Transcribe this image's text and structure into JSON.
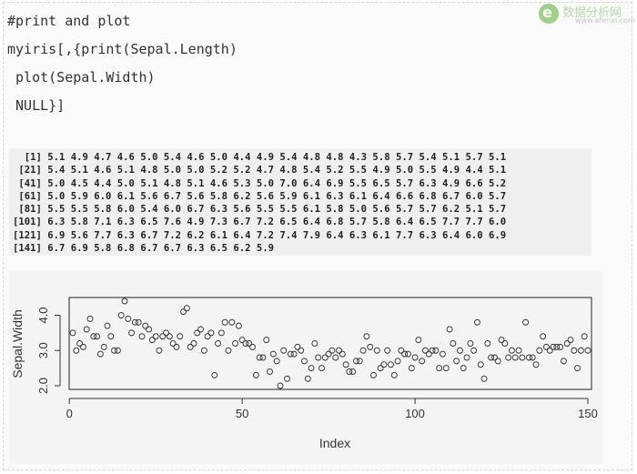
{
  "watermark": {
    "logo_letter": "e",
    "title": "数据分析网",
    "url": "www.afenxi.com"
  },
  "code": {
    "lines": [
      "#print and plot",
      "myiris[,{print(Sepal.Length)",
      " plot(Sepal.Width)",
      " NULL}]"
    ]
  },
  "console_output": {
    "lines": [
      "  [1] 5.1 4.9 4.7 4.6 5.0 5.4 4.6 5.0 4.4 4.9 5.4 4.8 4.8 4.3 5.8 5.7 5.4 5.1 5.7 5.1",
      " [21] 5.4 5.1 4.6 5.1 4.8 5.0 5.0 5.2 5.2 4.7 4.8 5.4 5.2 5.5 4.9 5.0 5.5 4.9 4.4 5.1",
      " [41] 5.0 4.5 4.4 5.0 5.1 4.8 5.1 4.6 5.3 5.0 7.0 6.4 6.9 5.5 6.5 5.7 6.3 4.9 6.6 5.2",
      " [61] 5.0 5.9 6.0 6.1 5.6 6.7 5.6 5.8 6.2 5.6 5.9 6.1 6.3 6.1 6.4 6.6 6.8 6.7 6.0 5.7",
      " [81] 5.5 5.5 5.8 6.0 5.4 6.0 6.7 6.3 5.6 5.5 5.5 6.1 5.8 5.0 5.6 5.7 5.7 6.2 5.1 5.7",
      "[101] 6.3 5.8 7.1 6.3 6.5 7.6 4.9 7.3 6.7 7.2 6.5 6.4 6.8 5.7 5.8 6.4 6.5 7.7 7.7 6.0",
      "[121] 6.9 5.6 7.7 6.3 6.7 7.2 6.2 6.1 6.4 7.2 7.4 7.9 6.4 6.3 6.1 7.7 6.3 6.4 6.0 6.9",
      "[141] 6.7 6.9 5.8 6.8 6.7 6.7 6.3 6.5 6.2 5.9"
    ]
  },
  "chart_data": {
    "type": "scatter",
    "xlabel": "Index",
    "ylabel": "Sepal.Width",
    "xlim": [
      1,
      150
    ],
    "ylim": [
      2.0,
      4.4
    ],
    "xticks": [
      0,
      50,
      100,
      150
    ],
    "yticks": [
      2.0,
      3.0,
      4.0
    ],
    "grid": false,
    "point_color": "#333333",
    "y": [
      3.5,
      3.0,
      3.2,
      3.1,
      3.6,
      3.9,
      3.4,
      3.4,
      2.9,
      3.1,
      3.7,
      3.4,
      3.0,
      3.0,
      4.0,
      4.4,
      3.9,
      3.5,
      3.8,
      3.8,
      3.4,
      3.7,
      3.6,
      3.3,
      3.4,
      3.0,
      3.4,
      3.5,
      3.4,
      3.2,
      3.1,
      3.4,
      4.1,
      4.2,
      3.1,
      3.2,
      3.5,
      3.6,
      3.0,
      3.4,
      3.5,
      2.3,
      3.2,
      3.5,
      3.8,
      3.0,
      3.8,
      3.2,
      3.7,
      3.3,
      3.2,
      3.2,
      3.1,
      2.3,
      2.8,
      2.8,
      3.3,
      2.4,
      2.9,
      2.7,
      2.0,
      3.0,
      2.2,
      2.9,
      2.9,
      3.1,
      3.0,
      2.7,
      2.2,
      2.5,
      3.2,
      2.8,
      2.5,
      2.8,
      2.9,
      3.0,
      2.8,
      3.0,
      2.9,
      2.6,
      2.4,
      2.4,
      2.7,
      2.7,
      3.0,
      3.4,
      3.1,
      2.3,
      3.0,
      2.5,
      2.6,
      3.0,
      2.6,
      2.3,
      2.7,
      3.0,
      2.9,
      2.9,
      2.5,
      2.8,
      3.3,
      2.7,
      3.0,
      2.9,
      3.0,
      3.0,
      2.5,
      2.9,
      2.5,
      3.6,
      3.2,
      2.7,
      3.0,
      2.5,
      2.8,
      3.2,
      3.0,
      3.8,
      2.6,
      2.2,
      3.2,
      2.8,
      2.8,
      2.7,
      3.3,
      3.2,
      2.8,
      3.0,
      2.8,
      3.0,
      2.8,
      3.8,
      2.8,
      2.8,
      2.6,
      3.0,
      3.4,
      3.1,
      3.0,
      3.1,
      3.1,
      3.1,
      2.7,
      3.2,
      3.3,
      3.0,
      2.5,
      3.0,
      3.4,
      3.0
    ]
  }
}
